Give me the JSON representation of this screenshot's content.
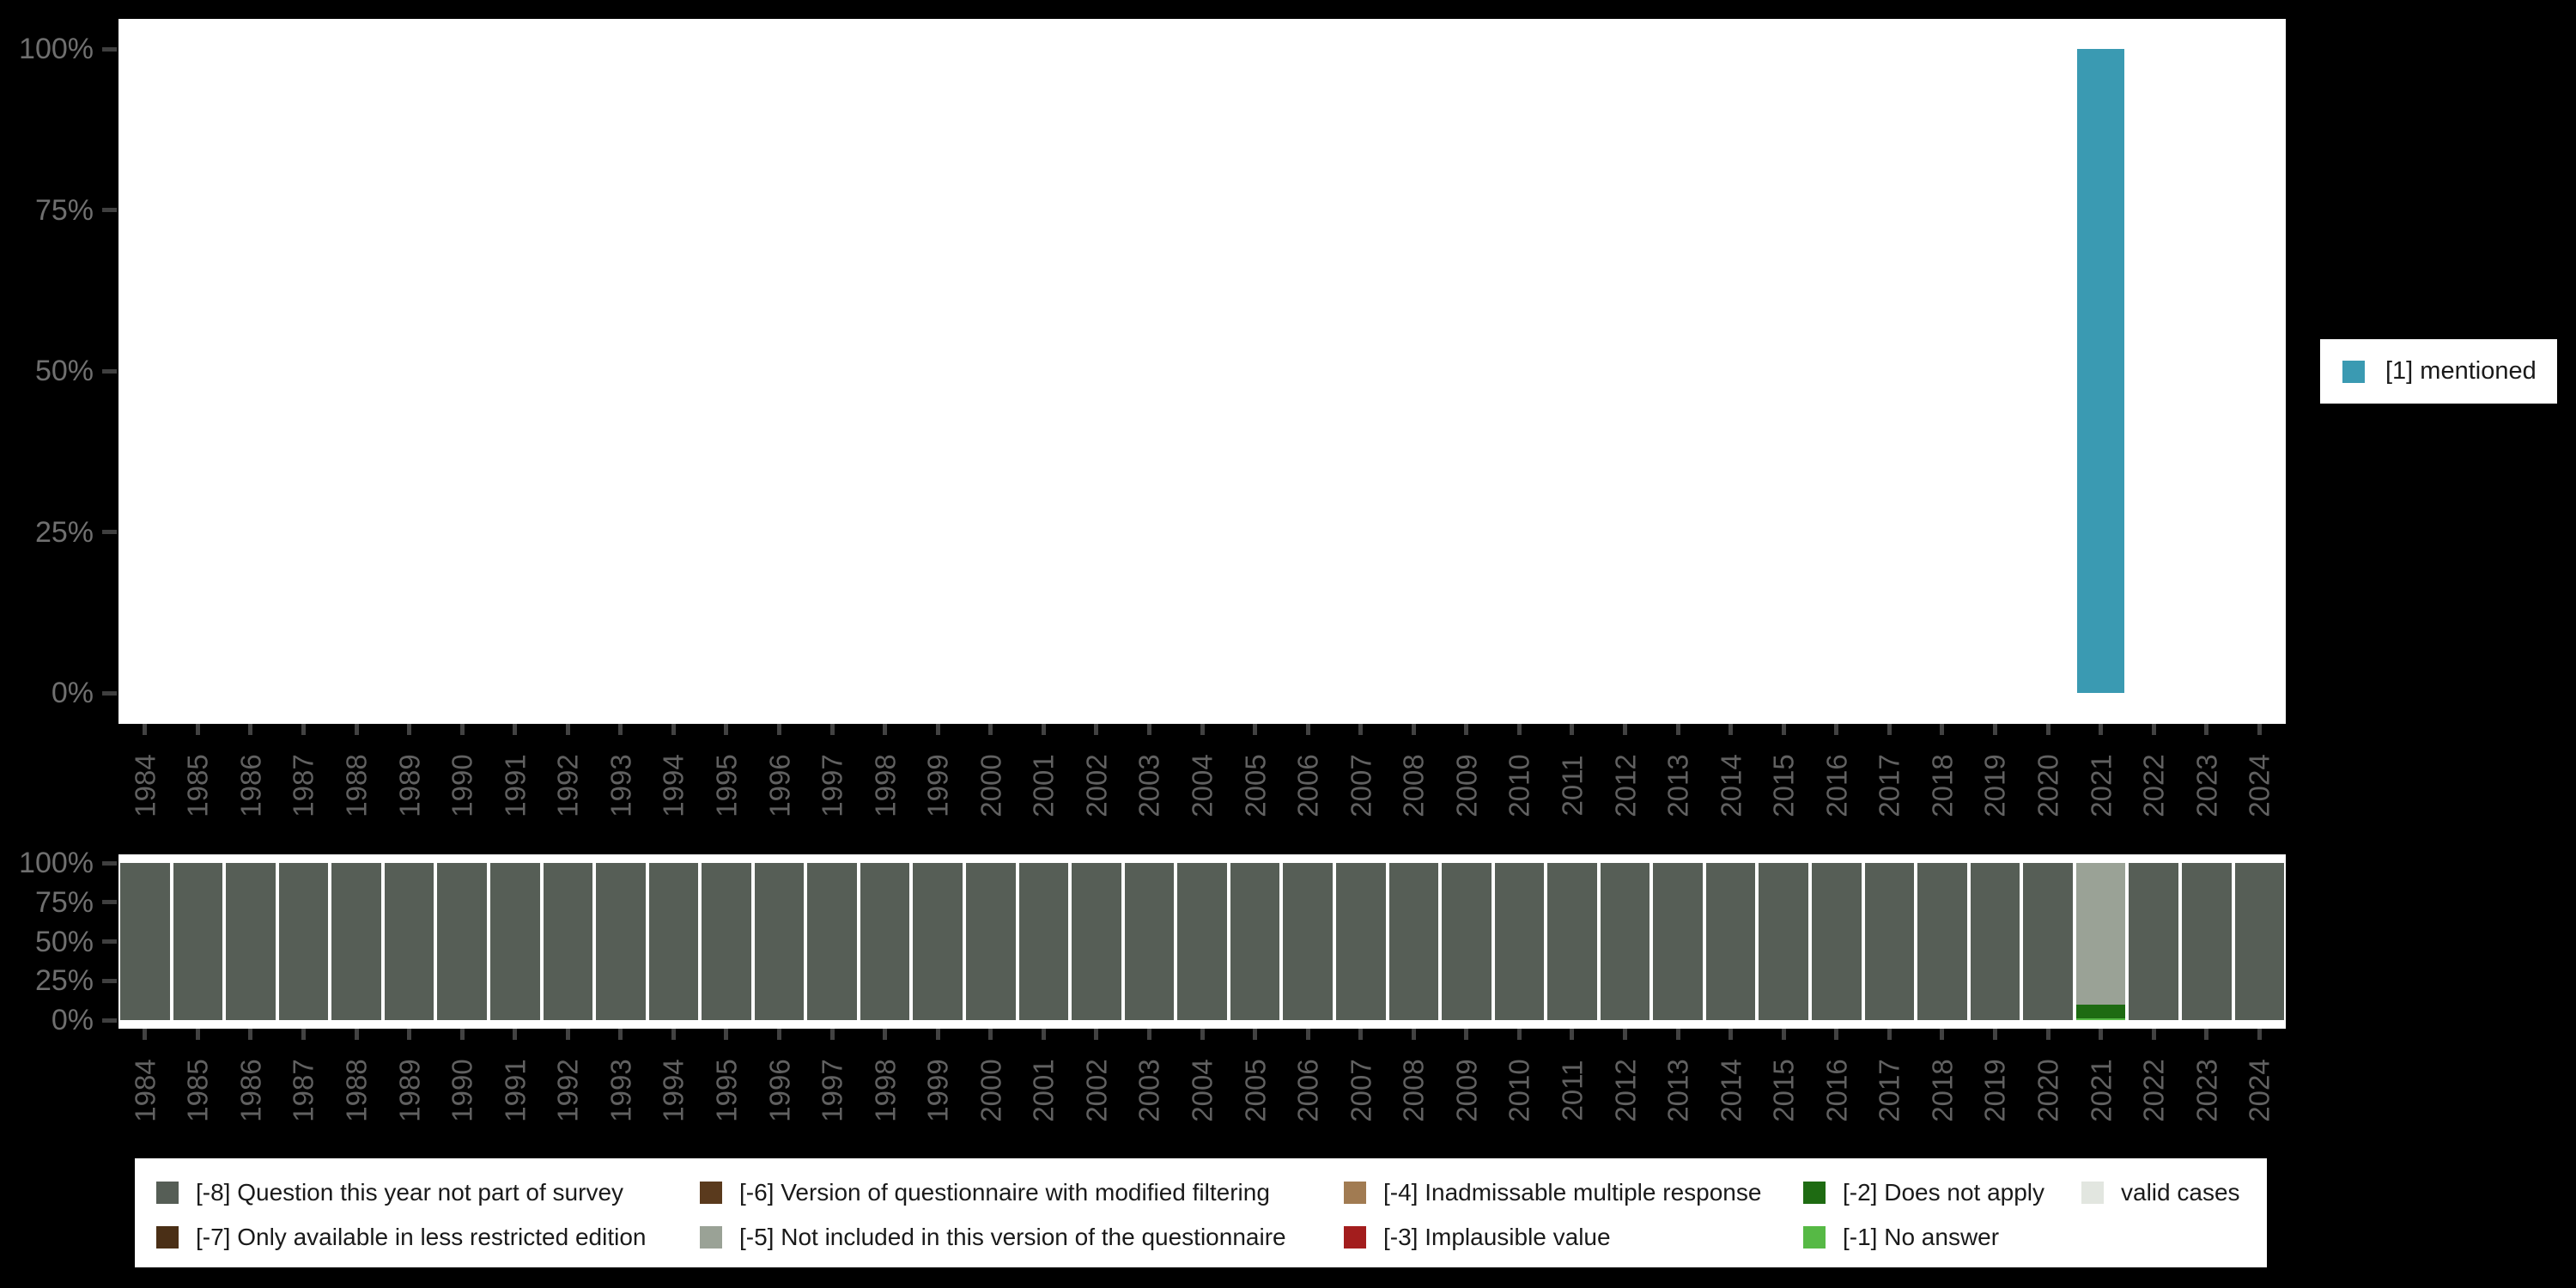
{
  "colors": {
    "background": "#000000",
    "plot_background": "#ffffff",
    "axis_label": "#6f6f6f",
    "year_label": "#616161",
    "tick_mark": "#424242",
    "legend_text": "#1a1a1a"
  },
  "right_legend": {
    "label": "[1] mentioned",
    "color": "#3a9ab2"
  },
  "bottom_legend": {
    "columns": [
      [
        {
          "label": "[-8] Question this year not part of survey",
          "color": "#565e56"
        },
        {
          "label": "[-7] Only available in less restricted edition",
          "color": "#4a2f16"
        }
      ],
      [
        {
          "label": "[-6] Version of questionnaire with modified filtering",
          "color": "#5a3a1d"
        },
        {
          "label": "[-5] Not included in this version of the questionnaire",
          "color": "#9aa296"
        }
      ],
      [
        {
          "label": "[-4] Inadmissable multiple response",
          "color": "#a17b52"
        },
        {
          "label": "[-3] Implausible value",
          "color": "#a31d1d"
        }
      ],
      [
        {
          "label": "[-2] Does not apply",
          "color": "#1e6b12"
        },
        {
          "label": "[-1] No answer",
          "color": "#56b945"
        }
      ],
      [
        {
          "label": "valid cases",
          "color": "#e2e6e0"
        }
      ]
    ]
  },
  "chart_data": [
    {
      "type": "bar",
      "title": "",
      "xlabel": "",
      "ylabel": "",
      "ylim": [
        0,
        100
      ],
      "yticks_top_to_bottom": [
        "100%",
        "75%",
        "50%",
        "25%",
        "0%"
      ],
      "grid": false,
      "legend_position": "right",
      "categories": [
        "1984",
        "1985",
        "1986",
        "1987",
        "1988",
        "1989",
        "1990",
        "1991",
        "1992",
        "1993",
        "1994",
        "1995",
        "1996",
        "1997",
        "1998",
        "1999",
        "2000",
        "2001",
        "2002",
        "2003",
        "2004",
        "2005",
        "2006",
        "2007",
        "2008",
        "2009",
        "2010",
        "2011",
        "2012",
        "2013",
        "2014",
        "2015",
        "2016",
        "2017",
        "2018",
        "2019",
        "2020",
        "2021",
        "2022",
        "2023",
        "2024"
      ],
      "series": [
        {
          "name": "[1] mentioned",
          "color": "#3a9ab2",
          "values": [
            null,
            null,
            null,
            null,
            null,
            null,
            null,
            null,
            null,
            null,
            null,
            null,
            null,
            null,
            null,
            null,
            null,
            null,
            null,
            null,
            null,
            null,
            null,
            null,
            null,
            null,
            null,
            null,
            null,
            null,
            null,
            null,
            null,
            null,
            null,
            null,
            null,
            100,
            null,
            null,
            null
          ]
        }
      ]
    },
    {
      "type": "stacked-bar",
      "title": "",
      "xlabel": "",
      "ylabel": "",
      "ylim": [
        0,
        100
      ],
      "yticks_top_to_bottom": [
        "100%",
        "75%",
        "50%",
        "25%",
        "0%"
      ],
      "grid": false,
      "legend_position": "bottom",
      "categories": [
        "1984",
        "1985",
        "1986",
        "1987",
        "1988",
        "1989",
        "1990",
        "1991",
        "1992",
        "1993",
        "1994",
        "1995",
        "1996",
        "1997",
        "1998",
        "1999",
        "2000",
        "2001",
        "2002",
        "2003",
        "2004",
        "2005",
        "2006",
        "2007",
        "2008",
        "2009",
        "2010",
        "2011",
        "2012",
        "2013",
        "2014",
        "2015",
        "2016",
        "2017",
        "2018",
        "2019",
        "2020",
        "2021",
        "2022",
        "2023",
        "2024"
      ],
      "series": [
        {
          "name": "[-8] Question this year not part of survey",
          "color": "#565e56",
          "values": [
            100,
            100,
            100,
            100,
            100,
            100,
            100,
            100,
            100,
            100,
            100,
            100,
            100,
            100,
            100,
            100,
            100,
            100,
            100,
            100,
            100,
            100,
            100,
            100,
            100,
            100,
            100,
            100,
            100,
            100,
            100,
            100,
            100,
            100,
            100,
            100,
            100,
            0,
            100,
            100,
            100
          ]
        },
        {
          "name": "[-7] Only available in less restricted edition",
          "color": "#4a2f16",
          "values": [
            0,
            0,
            0,
            0,
            0,
            0,
            0,
            0,
            0,
            0,
            0,
            0,
            0,
            0,
            0,
            0,
            0,
            0,
            0,
            0,
            0,
            0,
            0,
            0,
            0,
            0,
            0,
            0,
            0,
            0,
            0,
            0,
            0,
            0,
            0,
            0,
            0,
            0,
            0,
            0,
            0
          ]
        },
        {
          "name": "[-6] Version of questionnaire with modified filtering",
          "color": "#5a3a1d",
          "values": [
            0,
            0,
            0,
            0,
            0,
            0,
            0,
            0,
            0,
            0,
            0,
            0,
            0,
            0,
            0,
            0,
            0,
            0,
            0,
            0,
            0,
            0,
            0,
            0,
            0,
            0,
            0,
            0,
            0,
            0,
            0,
            0,
            0,
            0,
            0,
            0,
            0,
            0,
            0,
            0,
            0
          ]
        },
        {
          "name": "[-5] Not included in this version of the questionnaire",
          "color": "#9aa296",
          "values": [
            0,
            0,
            0,
            0,
            0,
            0,
            0,
            0,
            0,
            0,
            0,
            0,
            0,
            0,
            0,
            0,
            0,
            0,
            0,
            0,
            0,
            0,
            0,
            0,
            0,
            0,
            0,
            0,
            0,
            0,
            0,
            0,
            0,
            0,
            0,
            0,
            0,
            90,
            0,
            0,
            0
          ]
        },
        {
          "name": "[-4] Inadmissable multiple response",
          "color": "#a17b52",
          "values": [
            0,
            0,
            0,
            0,
            0,
            0,
            0,
            0,
            0,
            0,
            0,
            0,
            0,
            0,
            0,
            0,
            0,
            0,
            0,
            0,
            0,
            0,
            0,
            0,
            0,
            0,
            0,
            0,
            0,
            0,
            0,
            0,
            0,
            0,
            0,
            0,
            0,
            0,
            0,
            0,
            0
          ]
        },
        {
          "name": "[-3] Implausible value",
          "color": "#a31d1d",
          "values": [
            0,
            0,
            0,
            0,
            0,
            0,
            0,
            0,
            0,
            0,
            0,
            0,
            0,
            0,
            0,
            0,
            0,
            0,
            0,
            0,
            0,
            0,
            0,
            0,
            0,
            0,
            0,
            0,
            0,
            0,
            0,
            0,
            0,
            0,
            0,
            0,
            0,
            0,
            0,
            0,
            0
          ]
        },
        {
          "name": "[-2] Does not apply",
          "color": "#1e6b12",
          "values": [
            0,
            0,
            0,
            0,
            0,
            0,
            0,
            0,
            0,
            0,
            0,
            0,
            0,
            0,
            0,
            0,
            0,
            0,
            0,
            0,
            0,
            0,
            0,
            0,
            0,
            0,
            0,
            0,
            0,
            0,
            0,
            0,
            0,
            0,
            0,
            0,
            0,
            9,
            0,
            0,
            0
          ]
        },
        {
          "name": "[-1] No answer",
          "color": "#56b945",
          "values": [
            0,
            0,
            0,
            0,
            0,
            0,
            0,
            0,
            0,
            0,
            0,
            0,
            0,
            0,
            0,
            0,
            0,
            0,
            0,
            0,
            0,
            0,
            0,
            0,
            0,
            0,
            0,
            0,
            0,
            0,
            0,
            0,
            0,
            0,
            0,
            0,
            0,
            1,
            0,
            0,
            0
          ]
        },
        {
          "name": "valid cases",
          "color": "#e2e6e0",
          "values": [
            0,
            0,
            0,
            0,
            0,
            0,
            0,
            0,
            0,
            0,
            0,
            0,
            0,
            0,
            0,
            0,
            0,
            0,
            0,
            0,
            0,
            0,
            0,
            0,
            0,
            0,
            0,
            0,
            0,
            0,
            0,
            0,
            0,
            0,
            0,
            0,
            0,
            0,
            0,
            0,
            0
          ]
        }
      ]
    }
  ]
}
